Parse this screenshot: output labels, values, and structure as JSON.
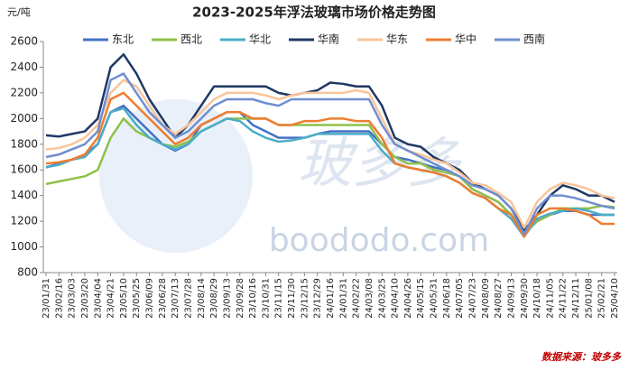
{
  "chart_data": {
    "type": "line",
    "title": "2023-2025年浮法玻璃市场价格走势图",
    "y_label": "元/吨",
    "source": "数据来源：玻多多",
    "watermark": "boododo.com",
    "watermark_brand": "玻多多",
    "categories": [
      "23/01/31",
      "23/02/16",
      "23/03/03",
      "23/03/20",
      "23/04/04",
      "23/04/21",
      "23/05/10",
      "23/05/25",
      "23/06/09",
      "23/06/28",
      "23/07/13",
      "23/07/28",
      "23/08/14",
      "23/08/29",
      "23/09/13",
      "23/09/28",
      "23/10/16",
      "23/10/31",
      "23/11/15",
      "23/11/30",
      "23/12/15",
      "23/12/29",
      "24/01/16",
      "24/01/31",
      "24/02/22",
      "24/03/08",
      "24/03/25",
      "24/04/10",
      "24/04/26",
      "24/05/15",
      "24/05/31",
      "24/06/18",
      "24/07/05",
      "24/07/23",
      "24/08/09",
      "24/08/27",
      "24/09/13",
      "24/09/30",
      "24/10/18",
      "24/11/05",
      "24/11/22",
      "24/12/11",
      "25/01/08",
      "25/02/21",
      "25/04/10"
    ],
    "series": [
      {
        "name": "东北",
        "color": "#4472c4",
        "values": [
          1620,
          1650,
          1680,
          1720,
          1800,
          2050,
          2100,
          2000,
          1900,
          1800,
          1750,
          1800,
          1950,
          2000,
          2050,
          2050,
          1950,
          1900,
          1850,
          1850,
          1850,
          1880,
          1900,
          1900,
          1900,
          1900,
          1800,
          1700,
          1680,
          1650,
          1620,
          1600,
          1550,
          1450,
          1400,
          1350,
          1250,
          1100,
          1200,
          1250,
          1280,
          1280,
          1250,
          1250,
          1250
        ]
      },
      {
        "name": "西北",
        "color": "#8fc04a",
        "values": [
          1490,
          1510,
          1530,
          1550,
          1600,
          1850,
          2000,
          1900,
          1850,
          1800,
          1780,
          1820,
          1900,
          1950,
          2000,
          2000,
          2000,
          2000,
          1950,
          1950,
          1950,
          1950,
          1950,
          1950,
          1950,
          1950,
          1800,
          1700,
          1650,
          1650,
          1600,
          1580,
          1550,
          1450,
          1400,
          1350,
          1250,
          1100,
          1200,
          1250,
          1300,
          1300,
          1300,
          1320,
          1310
        ]
      },
      {
        "name": "华北",
        "color": "#4bacc6",
        "values": [
          1620,
          1640,
          1680,
          1700,
          1800,
          2050,
          2080,
          1950,
          1850,
          1800,
          1760,
          1800,
          1900,
          1950,
          2000,
          1980,
          1900,
          1850,
          1820,
          1830,
          1850,
          1880,
          1880,
          1880,
          1880,
          1880,
          1750,
          1650,
          1620,
          1600,
          1580,
          1550,
          1500,
          1420,
          1380,
          1300,
          1220,
          1080,
          1220,
          1260,
          1280,
          1300,
          1280,
          1250,
          1250
        ]
      },
      {
        "name": "华南",
        "color": "#1f3864",
        "values": [
          1870,
          1860,
          1880,
          1900,
          2000,
          2400,
          2500,
          2350,
          2150,
          2000,
          1850,
          1950,
          2100,
          2250,
          2250,
          2250,
          2250,
          2250,
          2200,
          2180,
          2200,
          2220,
          2280,
          2270,
          2250,
          2250,
          2100,
          1850,
          1800,
          1780,
          1700,
          1650,
          1600,
          1500,
          1450,
          1400,
          1300,
          1130,
          1250,
          1400,
          1480,
          1450,
          1400,
          1400,
          1350
        ]
      },
      {
        "name": "华东",
        "color": "#f8c49a",
        "values": [
          1760,
          1770,
          1800,
          1850,
          1950,
          2200,
          2300,
          2250,
          2100,
          1950,
          1880,
          1950,
          2050,
          2150,
          2200,
          2200,
          2200,
          2180,
          2150,
          2180,
          2200,
          2200,
          2200,
          2200,
          2220,
          2200,
          2000,
          1800,
          1750,
          1720,
          1680,
          1650,
          1580,
          1500,
          1480,
          1420,
          1350,
          1150,
          1350,
          1450,
          1500,
          1480,
          1450,
          1400,
          1380
        ]
      },
      {
        "name": "华中",
        "color": "#ed7d31",
        "values": [
          1650,
          1660,
          1680,
          1720,
          1850,
          2150,
          2200,
          2100,
          2000,
          1900,
          1800,
          1850,
          1950,
          2000,
          2050,
          2050,
          2000,
          2000,
          1950,
          1950,
          1980,
          1980,
          2000,
          2000,
          1980,
          1980,
          1850,
          1650,
          1620,
          1600,
          1580,
          1550,
          1500,
          1420,
          1380,
          1300,
          1250,
          1080,
          1250,
          1300,
          1300,
          1280,
          1250,
          1180,
          1180
        ]
      },
      {
        "name": "西南",
        "color": "#6f8fcf",
        "values": [
          1700,
          1720,
          1760,
          1800,
          1900,
          2300,
          2350,
          2200,
          2050,
          1950,
          1850,
          1900,
          2000,
          2100,
          2150,
          2150,
          2150,
          2120,
          2100,
          2150,
          2150,
          2150,
          2150,
          2150,
          2150,
          2150,
          1950,
          1800,
          1750,
          1700,
          1650,
          1600,
          1550,
          1480,
          1450,
          1400,
          1300,
          1100,
          1300,
          1400,
          1400,
          1380,
          1350,
          1320,
          1300
        ]
      }
    ],
    "ylim": [
      800,
      2600
    ],
    "yticks": [
      800,
      1000,
      1200,
      1400,
      1600,
      1800,
      2000,
      2200,
      2400,
      2600
    ],
    "grid": false,
    "legend": "top"
  }
}
